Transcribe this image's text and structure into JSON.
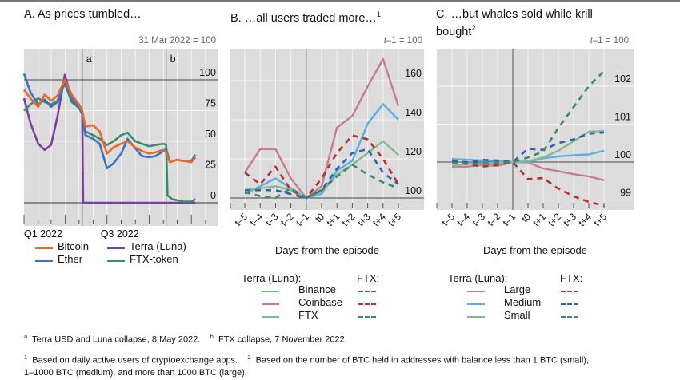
{
  "footnotes": {
    "a_mark": "a",
    "a_text": "Terra USD and Luna collapse, 8 May 2022.",
    "b_mark": "b",
    "b_text": "FTX collapse, 7 November 2022.",
    "n1_mark": "1",
    "n1_text": "Based on daily active users of cryptoexchange apps.",
    "n2_mark": "2",
    "n2_text_line1": "Based on the number of BTC held in addresses with balance less than 1 BTC (small),",
    "n2_text_line2": "1–1000 BTC (medium), and more than 1000 BTC (large)."
  },
  "colors": {
    "plot_bg": "#dcdcdc",
    "grid": "#f5f5f5",
    "bitcoin": "#e8692a",
    "ether": "#3a73c6",
    "terra": "#7a3ea0",
    "ftx_token": "#3b8a68",
    "pink": "#c97a90",
    "lightblue": "#5aaee6",
    "lightgreen": "#86b890",
    "dash_blue": "#3162ad",
    "dash_red": "#b8302f",
    "dash_green": "#3b8a68"
  },
  "chart_data": [
    {
      "id": "A",
      "type": "line",
      "title": "A. As prices tumbled…",
      "unit_note": "31 Mar 2022 = 100",
      "xlabel": "",
      "ylabel": "",
      "x_tick_labels": [
        "Q1 2022",
        "Q3 2022"
      ],
      "y_ticks": [
        0,
        25,
        50,
        75,
        100
      ],
      "ylim": [
        -5,
        115
      ],
      "grid": true,
      "event_markers": [
        {
          "label": "a",
          "date": "2022-05-08"
        },
        {
          "label": "b",
          "date": "2022-11-07"
        }
      ],
      "x_range": [
        "2022-01-01",
        "2023-01-31"
      ],
      "series": [
        {
          "name": "Bitcoin",
          "color_key": "bitcoin",
          "x": [
            "2022-01-01",
            "2022-01-15",
            "2022-02-01",
            "2022-02-15",
            "2022-03-01",
            "2022-03-15",
            "2022-03-31",
            "2022-04-15",
            "2022-05-01",
            "2022-05-08",
            "2022-05-15",
            "2022-06-01",
            "2022-06-15",
            "2022-07-01",
            "2022-07-15",
            "2022-08-01",
            "2022-08-15",
            "2022-09-01",
            "2022-09-15",
            "2022-10-01",
            "2022-10-15",
            "2022-11-01",
            "2022-11-07",
            "2022-11-15",
            "2022-12-01",
            "2022-12-15",
            "2023-01-01",
            "2023-01-10"
          ],
          "values": [
            92,
            85,
            78,
            88,
            83,
            87,
            100,
            88,
            80,
            75,
            62,
            63,
            58,
            40,
            45,
            48,
            50,
            45,
            42,
            40,
            41,
            43,
            41,
            33,
            35,
            34,
            33,
            37
          ]
        },
        {
          "name": "Ether",
          "color_key": "ether",
          "x": [
            "2022-01-01",
            "2022-01-15",
            "2022-02-01",
            "2022-02-15",
            "2022-03-01",
            "2022-03-15",
            "2022-03-31",
            "2022-04-15",
            "2022-05-01",
            "2022-05-08",
            "2022-05-15",
            "2022-06-01",
            "2022-06-15",
            "2022-07-01",
            "2022-07-15",
            "2022-08-01",
            "2022-08-15",
            "2022-09-01",
            "2022-09-15",
            "2022-10-01",
            "2022-10-15",
            "2022-11-01",
            "2022-11-07",
            "2022-11-15",
            "2022-12-01",
            "2022-12-15",
            "2023-01-01",
            "2023-01-10"
          ],
          "values": [
            105,
            90,
            80,
            84,
            78,
            82,
            98,
            85,
            78,
            72,
            55,
            52,
            48,
            28,
            32,
            40,
            52,
            44,
            38,
            37,
            38,
            42,
            44,
            33,
            35,
            34,
            34,
            39
          ]
        },
        {
          "name": "Terra (Luna)",
          "color_key": "terra",
          "x": [
            "2022-01-01",
            "2022-01-15",
            "2022-02-01",
            "2022-02-15",
            "2022-03-01",
            "2022-03-15",
            "2022-03-31",
            "2022-04-15",
            "2022-05-01",
            "2022-05-08",
            "2022-05-10",
            "2022-06-01",
            "2022-08-01",
            "2022-10-01",
            "2022-12-01",
            "2023-01-10"
          ],
          "values": [
            85,
            65,
            48,
            43,
            47,
            70,
            104,
            85,
            78,
            72,
            0,
            0,
            0,
            0,
            0,
            0
          ]
        },
        {
          "name": "FTX-token",
          "color_key": "ftx_token",
          "x": [
            "2022-01-01",
            "2022-01-15",
            "2022-02-01",
            "2022-02-15",
            "2022-03-01",
            "2022-03-15",
            "2022-03-31",
            "2022-04-15",
            "2022-05-01",
            "2022-05-08",
            "2022-05-15",
            "2022-06-01",
            "2022-06-15",
            "2022-07-01",
            "2022-07-15",
            "2022-08-01",
            "2022-08-15",
            "2022-09-01",
            "2022-09-15",
            "2022-10-01",
            "2022-10-15",
            "2022-11-01",
            "2022-11-07",
            "2022-11-10",
            "2022-11-20",
            "2022-12-01",
            "2022-12-15",
            "2023-01-01",
            "2023-01-10"
          ],
          "values": [
            75,
            80,
            85,
            82,
            80,
            83,
            97,
            82,
            77,
            72,
            58,
            55,
            52,
            47,
            50,
            55,
            57,
            50,
            48,
            46,
            47,
            48,
            47,
            6,
            3,
            2,
            1,
            1,
            3
          ]
        }
      ]
    },
    {
      "id": "B",
      "type": "line",
      "title": "B. …all users traded more…",
      "title_sup": "1",
      "unit_note_italic": "t",
      "unit_note_rest": "–1 = 100",
      "xlabel": "Days from the episode",
      "categories": [
        "t–5",
        "t–4",
        "t–3",
        "t–2",
        "t–1",
        "t0",
        "t+1",
        "t+2",
        "t+3",
        "t+4",
        "t+5"
      ],
      "y_ticks": [
        100,
        120,
        140,
        160
      ],
      "ylim": [
        93,
        181
      ],
      "grid": true,
      "legend_group_solid": "Terra (Luna):",
      "legend_group_dashed": "FTX:",
      "series": [
        {
          "name": "Binance",
          "group": "Terra (Luna)",
          "style": "solid",
          "color_key": "lightblue",
          "values": [
            102,
            106,
            110,
            105,
            100,
            102,
            114,
            119,
            138,
            148,
            140
          ]
        },
        {
          "name": "Coinbase",
          "group": "Terra (Luna)",
          "style": "solid",
          "color_key": "pink",
          "values": [
            113,
            125,
            125,
            110,
            100,
            106,
            136,
            142,
            157,
            171,
            147
          ]
        },
        {
          "name": "FTX",
          "group": "Terra (Luna)",
          "style": "solid",
          "color_key": "lightgreen",
          "values": [
            104,
            105,
            106,
            104,
            100,
            103,
            112,
            117,
            123,
            129,
            122
          ]
        },
        {
          "name": "Binance",
          "group": "FTX",
          "style": "dashed",
          "color_key": "dash_blue",
          "values": [
            104,
            104,
            104,
            102,
            100,
            104,
            115,
            123,
            125,
            113,
            107
          ]
        },
        {
          "name": "Coinbase",
          "group": "FTX",
          "style": "dashed",
          "color_key": "dash_red",
          "values": [
            113,
            107,
            116,
            104,
            100,
            110,
            123,
            132,
            130,
            120,
            107
          ]
        },
        {
          "name": "FTX",
          "group": "FTX",
          "style": "dashed",
          "color_key": "dash_green",
          "values": [
            103,
            101,
            100,
            105,
            100,
            104,
            111,
            117,
            112,
            108,
            105
          ]
        }
      ]
    },
    {
      "id": "C",
      "type": "line",
      "title_line1": "C. …but whales sold while krill",
      "title_line2": "bought",
      "title_sup": "2",
      "unit_note_italic": "t",
      "unit_note_rest": "–1 = 100",
      "xlabel": "Days from the episode",
      "categories": [
        "t–5",
        "t–4",
        "t–3",
        "t–2",
        "t–1",
        "t0",
        "t+1",
        "t+2",
        "t+3",
        "t+4",
        "t+5"
      ],
      "y_ticks": [
        99,
        100,
        101,
        102
      ],
      "ylim": [
        98.7,
        102.95
      ],
      "grid": true,
      "legend_group_solid": "Terra (Luna):",
      "legend_group_dashed": "FTX:",
      "series": [
        {
          "name": "Large",
          "group": "Terra (Luna)",
          "style": "solid",
          "color_key": "pink",
          "values": [
            99.86,
            99.88,
            99.92,
            99.9,
            100,
            99.99,
            99.83,
            99.76,
            99.68,
            99.62,
            99.52
          ]
        },
        {
          "name": "Medium",
          "group": "Terra (Luna)",
          "style": "solid",
          "color_key": "lightblue",
          "values": [
            100.08,
            100.06,
            100.04,
            100.03,
            100,
            100.0,
            100.1,
            100.15,
            100.18,
            100.2,
            100.3
          ]
        },
        {
          "name": "Small",
          "group": "Terra (Luna)",
          "style": "solid",
          "color_key": "lightgreen",
          "values": [
            99.9,
            99.95,
            99.97,
            99.98,
            100,
            100.02,
            100.12,
            100.3,
            100.55,
            100.8,
            100.82
          ]
        },
        {
          "name": "Large",
          "group": "FTX",
          "style": "dashed",
          "color_key": "dash_red",
          "values": [
            100.0,
            99.95,
            99.88,
            99.92,
            100,
            99.55,
            99.58,
            99.3,
            99.1,
            98.95,
            98.85
          ]
        },
        {
          "name": "Medium",
          "group": "FTX",
          "style": "dashed",
          "color_key": "dash_blue",
          "values": [
            100.02,
            100.0,
            100.06,
            100.04,
            100,
            100.35,
            100.32,
            100.5,
            100.6,
            100.75,
            100.78
          ]
        },
        {
          "name": "Small",
          "group": "FTX",
          "style": "dashed",
          "color_key": "dash_green",
          "values": [
            99.98,
            99.96,
            99.96,
            99.98,
            100,
            100.12,
            100.28,
            100.9,
            101.45,
            102.0,
            102.4
          ]
        }
      ]
    }
  ]
}
